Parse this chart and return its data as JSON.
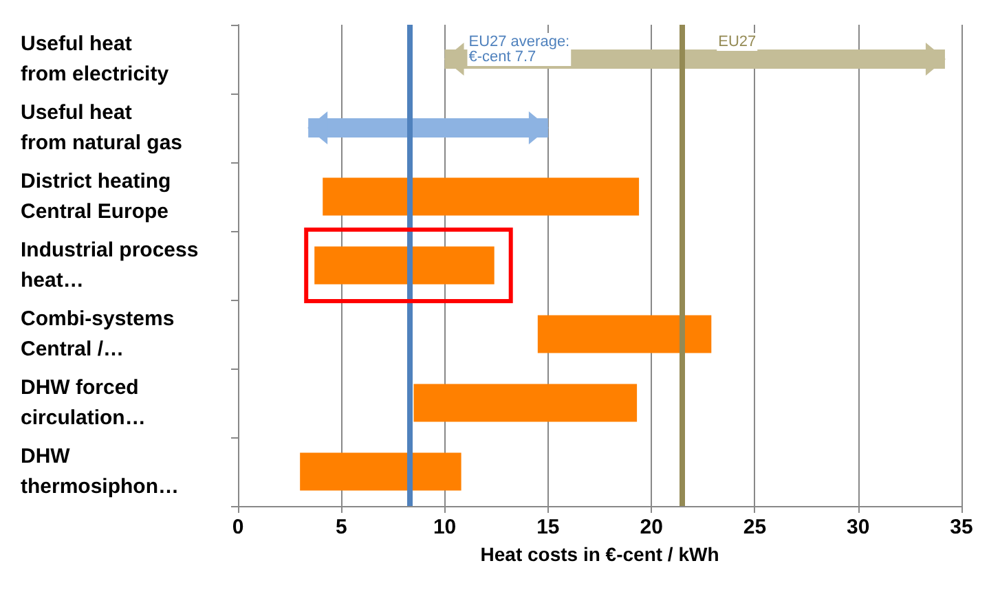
{
  "chart_data": {
    "type": "bar",
    "orientation": "horizontal",
    "xlabel": "Heat costs in €-cent / kWh",
    "categories": [
      "Useful heat\nfrom electricity",
      "Useful heat\nfrom natural gas",
      "District heating\nCentral Europe",
      "Industrial process\nheat…",
      "Combi-systems\nCentral /…",
      "DHW forced\ncirculation…",
      "DHW\nthermosiphon…"
    ],
    "series": [
      {
        "marker": "triangle",
        "colors": [
          "#c4bd97",
          "#8db3e2",
          null,
          null,
          null,
          null,
          null
        ],
        "base": [
          10,
          3.4,
          null,
          null,
          null,
          null,
          null
        ],
        "values": [
          24.2,
          11.6,
          null,
          null,
          null,
          null,
          null
        ]
      },
      {
        "color": "#ff8000",
        "base": [
          null,
          null,
          4.1,
          3.7,
          14.5,
          8.5,
          3.0
        ],
        "values": [
          null,
          null,
          15.3,
          8.7,
          8.4,
          10.8,
          7.8
        ]
      }
    ],
    "xlim": [
      0,
      35
    ],
    "xticks": [
      0,
      5,
      10,
      15,
      20,
      25,
      30,
      35
    ],
    "grid": "x",
    "ref_lines": [
      {
        "axis": "x",
        "value": 8.3,
        "label": "EU27 average:\n€-cent 7.7",
        "color": "#4f81bd"
      },
      {
        "axis": "x",
        "value": 21.5,
        "label": "EU27",
        "color": "#948a54"
      }
    ]
  }
}
